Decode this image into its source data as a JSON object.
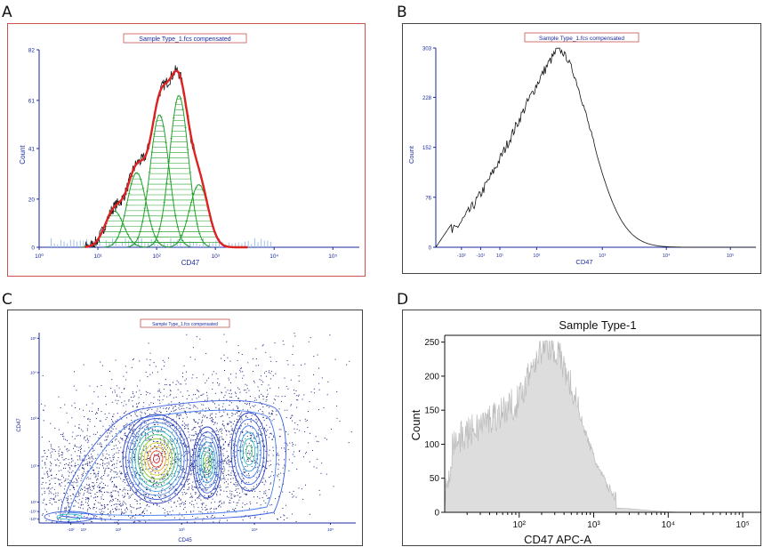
{
  "panels": [
    {
      "letter": "A",
      "title": "Sample Type_1.fcs compensated",
      "xlabel": "CD47",
      "ylabel": "Count"
    },
    {
      "letter": "B",
      "title": "Sample Type_1.fcs compensated",
      "xlabel": "CD47",
      "ylabel": "Count"
    },
    {
      "letter": "C",
      "title": "Sample Type_1.fcs compensated",
      "xlabel": "CD45",
      "ylabel": "CD47"
    },
    {
      "letter": "D",
      "title": "Sample Type-1",
      "xlabel": "CD47 APC-A",
      "ylabel": "Count"
    }
  ],
  "chart_data": [
    {
      "type": "area",
      "panel": "A",
      "title": "Sample Type_1.fcs compensated",
      "xlabel": "CD47",
      "ylabel": "Count",
      "xscale": "log",
      "x_tick_labels": [
        "10⁰",
        "10¹",
        "10²",
        "10³",
        "10⁴",
        "10⁵"
      ],
      "y_tick_labels": [
        "0",
        "20",
        "41",
        "61",
        "82"
      ],
      "ylim": [
        0,
        82
      ],
      "series": [
        {
          "name": "",
          "values_at_x": [
            [
              8,
              5
            ],
            [
              15,
              16
            ],
            [
              30,
              24
            ],
            [
              60,
              34
            ],
            [
              120,
              50
            ],
            [
              200,
              66
            ],
            [
              300,
              80
            ],
            [
              400,
              66
            ],
            [
              700,
              36
            ],
            [
              1200,
              12
            ],
            [
              2500,
              2
            ]
          ]
        }
      ],
      "fitted_peaks_log10_center": [
        1.28,
        1.66,
        2.05,
        2.38,
        2.72
      ],
      "fitted_peaks_height": [
        15,
        31,
        55,
        63,
        26
      ],
      "colors": {
        "fit": "#dd2222",
        "peaks": "#22a02a",
        "data": "#111111"
      }
    },
    {
      "type": "line",
      "panel": "B",
      "title": "Sample Type_1.fcs compensated",
      "xlabel": "CD47",
      "ylabel": "Count",
      "x_tick_labels": [
        "-10²",
        "-10¹",
        "10¹",
        "10²",
        "10³",
        "10⁴",
        "10⁵"
      ],
      "y_tick_labels": [
        "0",
        "76",
        "152",
        "228",
        "303"
      ],
      "ylim": [
        0,
        303
      ],
      "series": [
        {
          "name": "",
          "values_at_x": [
            [
              0.4,
              0
            ],
            [
              0.8,
              40
            ],
            [
              1.0,
              110
            ],
            [
              1.3,
              190
            ],
            [
              1.7,
              268
            ],
            [
              2.0,
              295
            ],
            [
              2.3,
              285
            ],
            [
              2.6,
              210
            ],
            [
              2.9,
              110
            ],
            [
              3.2,
              30
            ],
            [
              3.6,
              5
            ],
            [
              4.2,
              0
            ]
          ]
        }
      ]
    },
    {
      "type": "scatter",
      "panel": "C",
      "title": "Sample Type_1.fcs compensated",
      "xlabel": "CD45",
      "ylabel": "CD47",
      "x_tick_labels": [
        "-10²",
        "10¹",
        "10²",
        "10³",
        "10⁴",
        "10⁵"
      ],
      "y_tick_labels": [
        "-10¹",
        "-10¹",
        "10¹",
        "10²",
        "10³",
        "10⁴",
        "10⁵"
      ],
      "description_free": true
    },
    {
      "type": "area",
      "panel": "D",
      "title": "Sample Type-1",
      "xlabel": "CD47 APC-A",
      "ylabel": "Count",
      "xscale": "log",
      "x_tick_labels": [
        "10²",
        "10³",
        "10⁴",
        "10⁵"
      ],
      "y_tick_labels": [
        "0",
        "50",
        "100",
        "150",
        "200",
        "250"
      ],
      "ylim": [
        0,
        260
      ],
      "series": [
        {
          "name": "",
          "values_at_x": [
            [
              1.2,
              60
            ],
            [
              1.5,
              100
            ],
            [
              1.8,
              160
            ],
            [
              2.1,
              215
            ],
            [
              2.3,
              245
            ],
            [
              2.45,
              235
            ],
            [
              2.6,
              170
            ],
            [
              2.8,
              80
            ],
            [
              3.0,
              30
            ],
            [
              3.3,
              12
            ],
            [
              3.6,
              3
            ],
            [
              4.0,
              0
            ]
          ]
        }
      ],
      "colors": {
        "fill": "#dddddd",
        "edge": "#bbbbbb"
      }
    }
  ]
}
